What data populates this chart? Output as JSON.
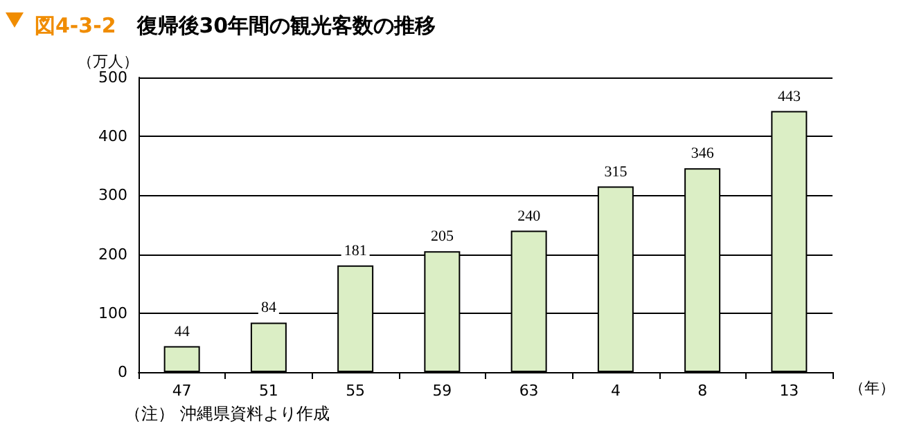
{
  "chart_data": {
    "type": "bar",
    "title": "図4-3-2　復帰後30年間の観光客数の推移",
    "ylabel": "（万人）",
    "xlabel": "（年）",
    "categories": [
      "47",
      "51",
      "55",
      "59",
      "63",
      "4",
      "8",
      "13"
    ],
    "values": [
      44,
      84,
      181,
      205,
      240,
      315,
      346,
      443
    ],
    "color": "#dbeec5",
    "ylim": [
      0,
      500
    ],
    "yticks": [
      0,
      100,
      200,
      300,
      400,
      500
    ],
    "grid": "y",
    "data_labels": true,
    "annotations": [
      "（注） 沖縄県資料より作成"
    ]
  }
}
